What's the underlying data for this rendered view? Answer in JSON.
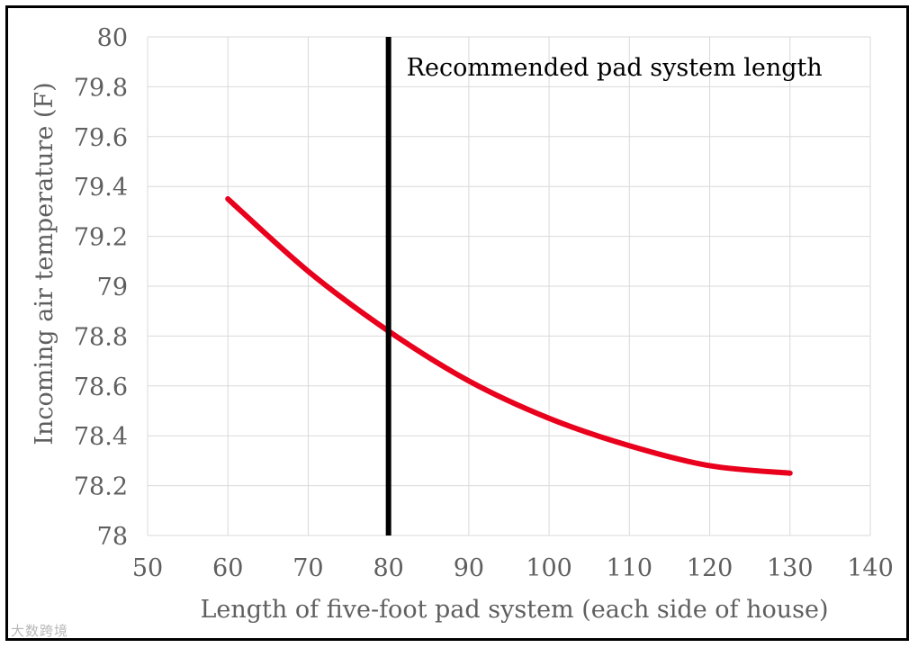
{
  "colors": {
    "series": "#e8001c",
    "annotation_line": "#000000",
    "grid": "#d9d9d9",
    "tick_text": "#5f5f5f"
  },
  "watermark": {
    "text": "大数跨境"
  },
  "chart_data": {
    "type": "line",
    "xlabel": "Length of five-foot pad system (each side of house)",
    "ylabel": "Incoming air temperature (F)",
    "xlim": [
      50,
      140
    ],
    "ylim": [
      78,
      80
    ],
    "x_ticks": [
      50,
      60,
      70,
      80,
      90,
      100,
      110,
      120,
      130,
      140
    ],
    "y_ticks": [
      78,
      78.2,
      78.4,
      78.6,
      78.8,
      79,
      79.2,
      79.4,
      79.6,
      79.8,
      80
    ],
    "x_tick_labels": [
      "50",
      "60",
      "70",
      "80",
      "90",
      "100",
      "110",
      "120",
      "130",
      "140"
    ],
    "y_tick_labels": [
      "78",
      "78.2",
      "78.4",
      "78.6",
      "78.8",
      "79",
      "79.2",
      "79.4",
      "79.6",
      "79.8",
      "80"
    ],
    "grid": true,
    "series": [
      {
        "x": [
          60,
          70,
          80,
          90,
          100,
          110,
          120,
          130
        ],
        "y": [
          79.35,
          79.06,
          78.82,
          78.62,
          78.47,
          78.36,
          78.28,
          78.25
        ]
      }
    ],
    "annotations": [
      {
        "type": "vertical_line",
        "x": 80,
        "label": "Recommended pad system length"
      }
    ]
  }
}
